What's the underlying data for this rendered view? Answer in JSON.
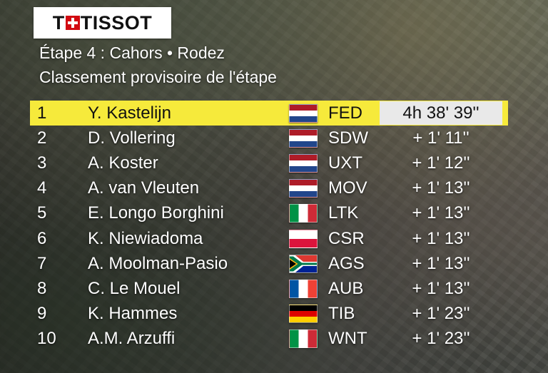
{
  "logo": {
    "text_left": "T",
    "text_right": "TISSOT",
    "icon": "swiss-cross-icon",
    "accent": "#d20a11"
  },
  "header": {
    "stage": "Étape 4 : Cahors • Rodez",
    "subtitle": "Classement provisoire de l'étape"
  },
  "colors": {
    "leader_bg": "#f6ea3b",
    "time_box_bg": "#e9e9e9",
    "text": "#ffffff"
  },
  "standings": [
    {
      "pos": "1",
      "name": "Y. Kastelijn",
      "flag": "netherlands",
      "team": "FED",
      "time": "4h 38' 39''"
    },
    {
      "pos": "2",
      "name": "D. Vollering",
      "flag": "netherlands",
      "team": "SDW",
      "time": "+ 1'  11''"
    },
    {
      "pos": "3",
      "name": "A. Koster",
      "flag": "netherlands",
      "team": "UXT",
      "time": "+ 1'  12''"
    },
    {
      "pos": "4",
      "name": "A. van Vleuten",
      "flag": "netherlands",
      "team": "MOV",
      "time": "+ 1'  13''"
    },
    {
      "pos": "5",
      "name": "E. Longo Borghini",
      "flag": "italy",
      "team": "LTK",
      "time": "+ 1'  13''"
    },
    {
      "pos": "6",
      "name": "K. Niewiadoma",
      "flag": "poland",
      "team": "CSR",
      "time": "+ 1'  13''"
    },
    {
      "pos": "7",
      "name": "A. Moolman-Pasio",
      "flag": "south-africa",
      "team": "AGS",
      "time": "+ 1'  13''"
    },
    {
      "pos": "8",
      "name": "C. Le Mouel",
      "flag": "france",
      "team": "AUB",
      "time": "+ 1'  13''"
    },
    {
      "pos": "9",
      "name": "K. Hammes",
      "flag": "germany",
      "team": "TIB",
      "time": "+ 1'  23''"
    },
    {
      "pos": "10",
      "name": "A.M. Arzuffi",
      "flag": "italy",
      "team": "WNT",
      "time": "+ 1'  23''"
    }
  ]
}
